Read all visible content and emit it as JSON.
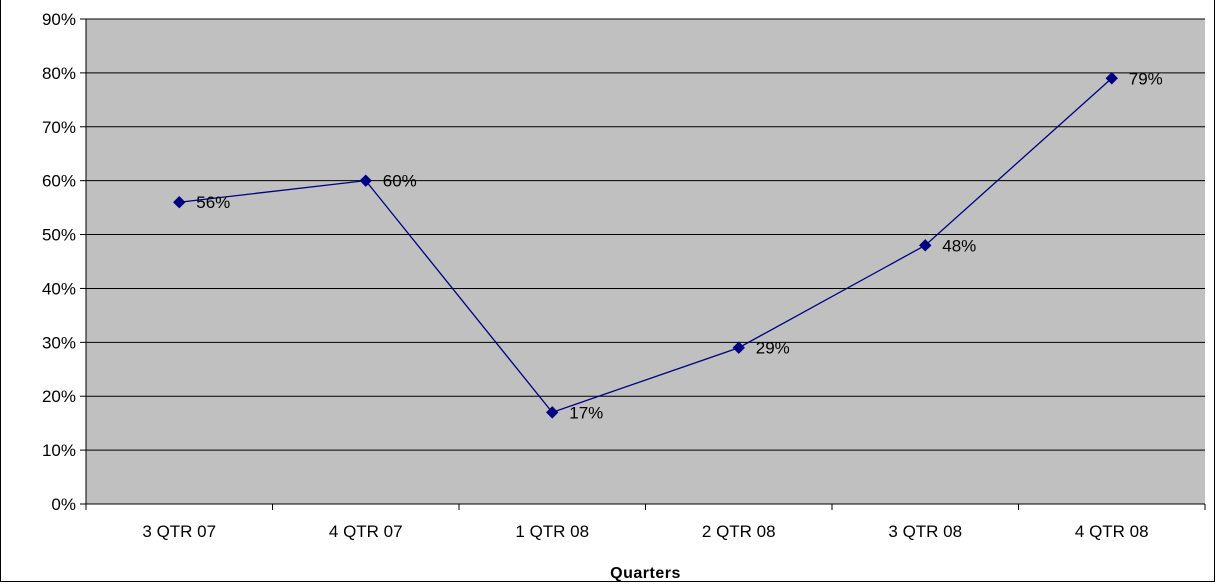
{
  "chart_data": {
    "type": "line",
    "title": "",
    "xlabel": "Quarters",
    "ylabel": "",
    "categories": [
      "3 QTR 07",
      "4 QTR 07",
      "1 QTR 08",
      "2 QTR 08",
      "3 QTR 08",
      "4 QTR 08"
    ],
    "series": [
      {
        "values": [
          0.56,
          0.6,
          0.17,
          0.29,
          0.48,
          0.79
        ],
        "labels": [
          "56%",
          "60%",
          "17%",
          "29%",
          "48%",
          "79%"
        ],
        "color": "#000080",
        "marker": "diamond"
      }
    ],
    "ylim": [
      0,
      0.9
    ],
    "yticks": [
      0,
      0.1,
      0.2,
      0.3,
      0.4,
      0.5,
      0.6,
      0.7,
      0.8,
      0.9
    ],
    "ytick_labels": [
      "0%",
      "10%",
      "20%",
      "30%",
      "40%",
      "50%",
      "60%",
      "70%",
      "80%",
      "90%"
    ],
    "grid": true,
    "legend": "none",
    "plot_background": "#c0c0c0",
    "gridline_color": "#000000"
  }
}
